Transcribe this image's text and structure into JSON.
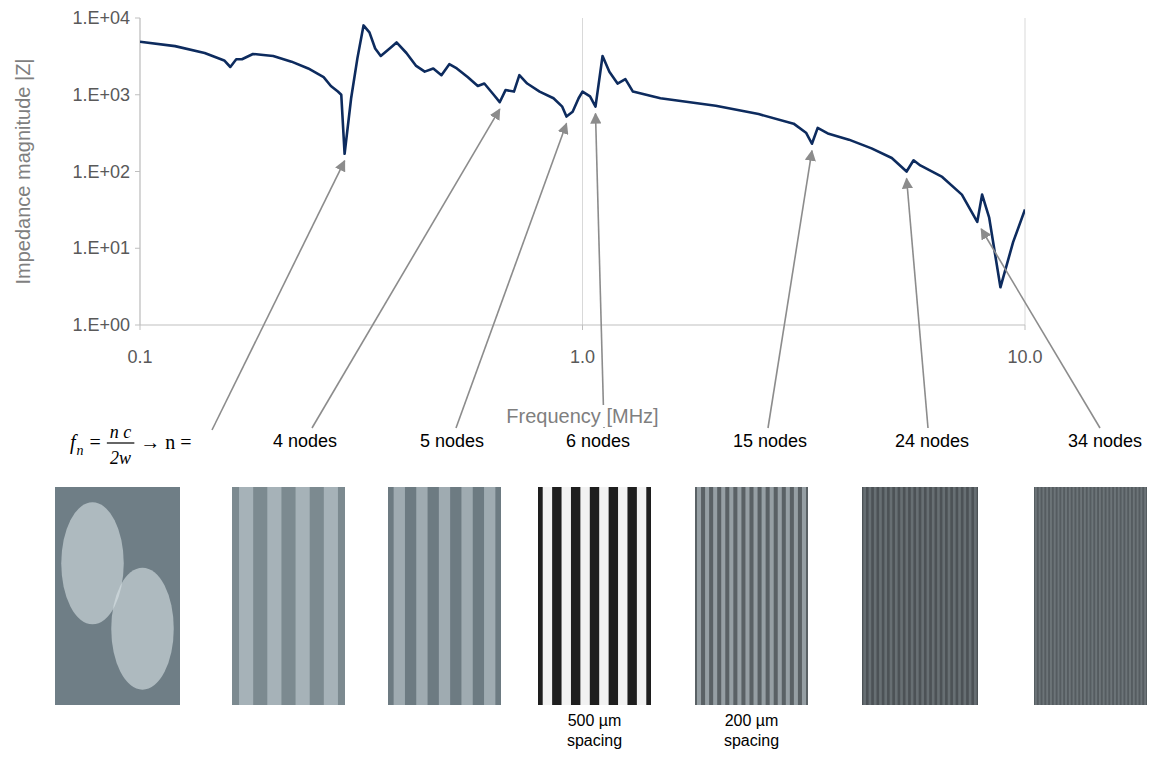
{
  "chart_data": {
    "type": "line",
    "x_label": "Frequency [MHz]",
    "y_label": "Impedance magnitude |Z|",
    "log": true,
    "grid": true,
    "xlim": [
      0.1,
      10
    ],
    "xticks": [
      0.1,
      {
        "value": 1,
        "label": "1.0"
      },
      {
        "value": 10,
        "label": "10.0"
      }
    ],
    "ylim": [
      1,
      10000
    ],
    "yticks": [
      {
        "value": 1,
        "label": "1.E+00"
      },
      {
        "value": 10,
        "label": "1.E+01"
      },
      {
        "value": 100,
        "label": "1.E+02"
      },
      {
        "value": 1000,
        "label": "1.E+03"
      },
      {
        "value": 10000,
        "label": "1.E+04"
      }
    ],
    "x": [
      0.1,
      0.12,
      0.14,
      0.155,
      0.16,
      0.165,
      0.17,
      0.18,
      0.19,
      0.2,
      0.22,
      0.24,
      0.26,
      0.27,
      0.28,
      0.285,
      0.29,
      0.3,
      0.31,
      0.32,
      0.33,
      0.34,
      0.35,
      0.37,
      0.38,
      0.4,
      0.42,
      0.44,
      0.46,
      0.48,
      0.5,
      0.52,
      0.55,
      0.58,
      0.6,
      0.63,
      0.65,
      0.67,
      0.7,
      0.72,
      0.75,
      0.8,
      0.86,
      0.9,
      0.92,
      0.95,
      0.98,
      1.0,
      1.04,
      1.07,
      1.11,
      1.15,
      1.2,
      1.25,
      1.3,
      1.5,
      2.0,
      2.5,
      3.0,
      3.2,
      3.3,
      3.4,
      3.6,
      4.0,
      4.5,
      5.0,
      5.4,
      5.6,
      5.8,
      6.5,
      7.2,
      7.8,
      8.0,
      8.3,
      8.8,
      9.4,
      10
    ],
    "series": [
      {
        "name": "|Z|",
        "color": "#0d2b5e",
        "values": [
          4900,
          4300,
          3500,
          2800,
          2300,
          2900,
          2900,
          3400,
          3300,
          3200,
          2700,
          2200,
          1700,
          1300,
          1100,
          1000,
          170,
          900,
          3000,
          8000,
          6500,
          4000,
          3200,
          4200,
          4800,
          3500,
          2400,
          2000,
          2200,
          1800,
          2500,
          2200,
          1700,
          1300,
          1400,
          1000,
          800,
          1150,
          1100,
          1800,
          1400,
          1100,
          900,
          700,
          520,
          600,
          900,
          1100,
          950,
          700,
          3200,
          2000,
          1400,
          1600,
          1100,
          900,
          720,
          560,
          420,
          320,
          230,
          370,
          310,
          260,
          200,
          150,
          100,
          140,
          120,
          85,
          50,
          22,
          50,
          25,
          3.1,
          12,
          32
        ]
      }
    ],
    "annotations": [
      {
        "formula": {
          "lhs": "f",
          "sub": "n",
          "eq": "=",
          "num": "n c",
          "den": "2w",
          "rhs": "→ n ="
        },
        "x": 0.29,
        "y": 170
      },
      {
        "label": "4 nodes",
        "x": 0.65,
        "y": 800
      },
      {
        "label": "5 nodes",
        "x": 0.92,
        "y": 520
      },
      {
        "label": "6 nodes",
        "x": 1.07,
        "y": 700,
        "caption": "500 µm spacing"
      },
      {
        "label": "15 nodes",
        "x": 3.3,
        "y": 230,
        "caption": "200 µm spacing"
      },
      {
        "label": "24 nodes",
        "x": 5.4,
        "y": 100
      },
      {
        "label": "34 nodes",
        "x": 7.8,
        "y": 22
      }
    ]
  }
}
